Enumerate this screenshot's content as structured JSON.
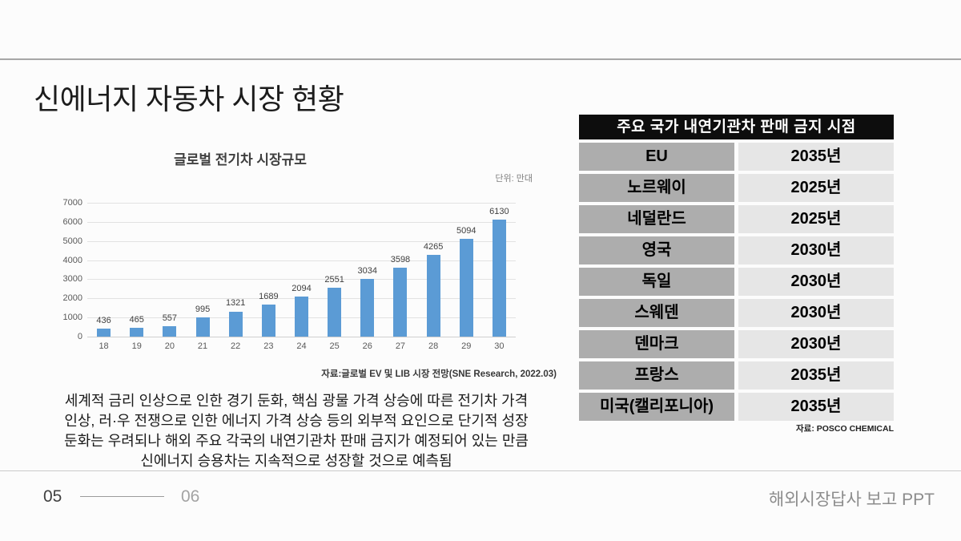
{
  "slide": {
    "title": "신에너지 자동차 시장 현황",
    "footer": {
      "page_current": "05",
      "page_next": "06",
      "right_text": "해외시장답사 보고 PPT"
    }
  },
  "chart": {
    "title": "글로벌 전기차 시장규모",
    "unit_label": "단위: 만대",
    "source": "자료:글로벌 EV 및 LIB 시장 전망(SNE Research, 2022.03)"
  },
  "chart_data": {
    "type": "bar",
    "title": "글로벌 전기차 시장규모",
    "categories": [
      "18",
      "19",
      "20",
      "21",
      "22",
      "23",
      "24",
      "25",
      "26",
      "27",
      "28",
      "29",
      "30"
    ],
    "values": [
      436,
      465,
      557,
      995,
      1321,
      1689,
      2094,
      2551,
      3034,
      3598,
      4265,
      5094,
      6130
    ],
    "unit": "만대",
    "xlabel": "",
    "ylabel": "",
    "ylim": [
      0,
      7000
    ],
    "ytick_step": 1000,
    "grid": true,
    "legend": false,
    "bar_color": "#5b9bd5",
    "data_labels": true
  },
  "summary": {
    "text": "세계적 금리 인상으로 인한 경기 둔화, 핵심 광물 가격 상승에 따른 전기차 가격\n인상, 러·우 전쟁으로 인한 에너지 가격 상승 등의 외부적 요인으로 단기적 성장\n둔화는 우려되나 해외 주요 각국의 내연기관차 판매 금지가 예정되어 있는 만큼\n신에너지 승용차는 지속적으로 성장할 것으로 예측됨"
  },
  "ban_table": {
    "header": "주요 국가 내연기관차 판매 금지 시점",
    "columns": [
      "country",
      "ban_year"
    ],
    "rows": [
      {
        "country": "EU",
        "year": "2035년"
      },
      {
        "country": "노르웨이",
        "year": "2025년"
      },
      {
        "country": "네덜란드",
        "year": "2025년"
      },
      {
        "country": "영국",
        "year": "2030년"
      },
      {
        "country": "독일",
        "year": "2030년"
      },
      {
        "country": "스웨덴",
        "year": "2030년"
      },
      {
        "country": "덴마크",
        "year": "2030년"
      },
      {
        "country": "프랑스",
        "year": "2035년"
      },
      {
        "country": "미국(캘리포니아)",
        "year": "2035년"
      }
    ],
    "source": "자료: POSCO CHEMICAL",
    "colors": {
      "header_bg": "#0d0d0d",
      "header_text": "#ffffff",
      "country_bg": "#adadad",
      "year_bg": "#e6e6e6"
    }
  }
}
